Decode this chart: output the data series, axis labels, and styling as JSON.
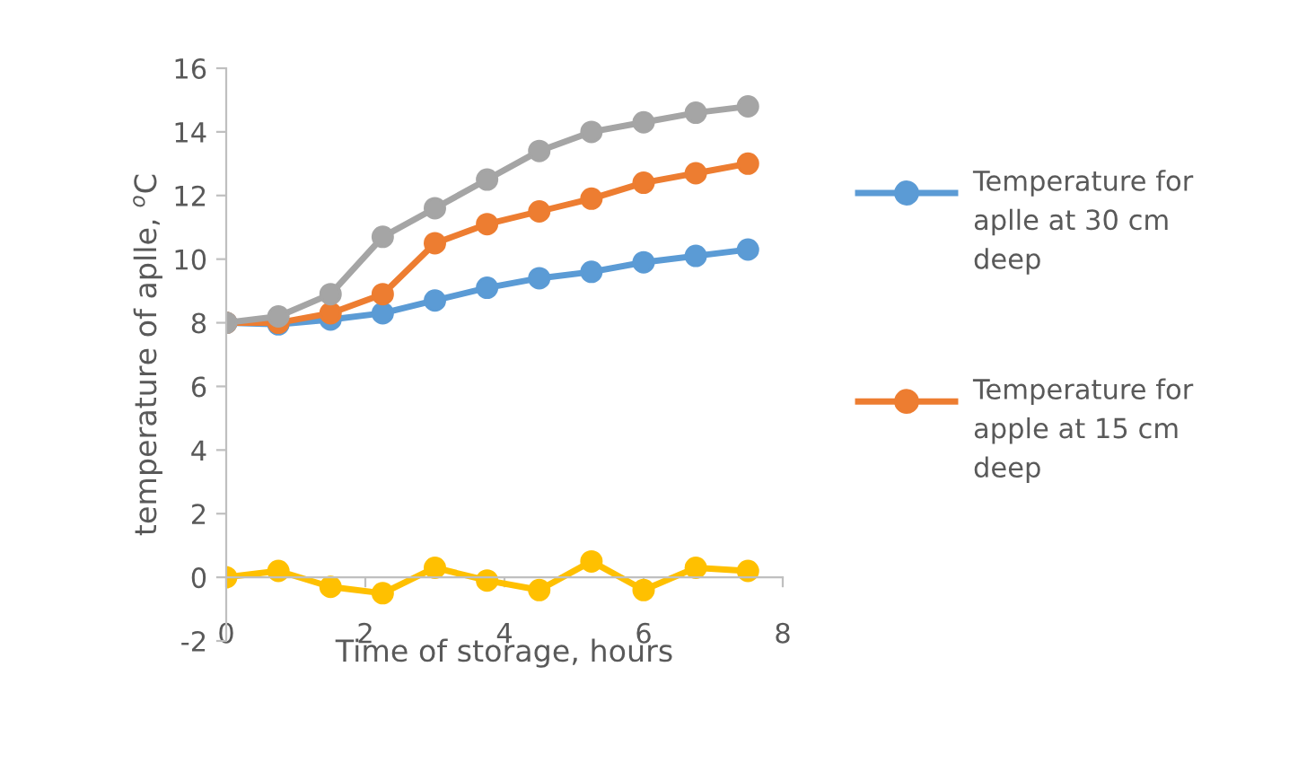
{
  "chart_data": {
    "type": "line",
    "xlabel": "Time of storage, hours",
    "ylabel": "temperature of aplle, $^{o}$C",
    "x": [
      0,
      0.75,
      1.5,
      2.25,
      3,
      3.75,
      4.5,
      5.25,
      6,
      6.75,
      7.5
    ],
    "series": [
      {
        "name": "Temperature for aplle at 30 cm deep",
        "color": "#5b9bd5",
        "values": [
          8,
          7.95,
          8.1,
          8.3,
          8.7,
          9.1,
          9.4,
          9.6,
          9.9,
          10.1,
          10.3
        ]
      },
      {
        "name": "Temperature for apple at 15 cm deep",
        "color": "#ed7d31",
        "values": [
          8,
          8.0,
          8.3,
          8.9,
          10.5,
          11.1,
          11.5,
          11.9,
          12.4,
          12.7,
          13.0
        ]
      },
      {
        "color": "#a5a5a5",
        "values": [
          8,
          8.2,
          8.9,
          10.7,
          11.6,
          12.5,
          13.4,
          14.0,
          14.3,
          14.6,
          14.8
        ]
      },
      {
        "color": "#ffc000",
        "values": [
          0,
          0.2,
          -0.3,
          -0.5,
          0.3,
          -0.1,
          -0.4,
          0.5,
          -0.4,
          0.3,
          0.2
        ]
      }
    ],
    "xlim": [
      0,
      8
    ],
    "xticks": [
      0,
      2,
      4,
      6,
      8
    ],
    "ylim": [
      -2,
      16
    ],
    "yticks": [
      -2,
      0,
      2,
      4,
      6,
      8,
      10,
      12,
      14,
      16
    ],
    "grid": false,
    "legend": "right",
    "marker": "circle",
    "line_style": "solid"
  }
}
